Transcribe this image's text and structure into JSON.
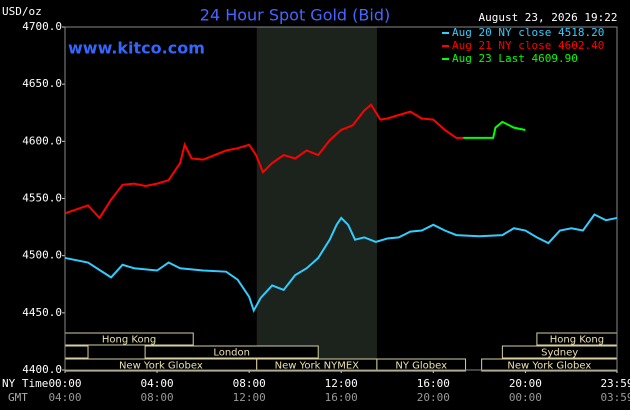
{
  "chart_data": {
    "type": "line",
    "title": "24 Hour Spot Gold (Bid)",
    "watermark": "www.kitco.com",
    "timestamp": "August 23, 2026 19:22",
    "y_label": "USD/oz",
    "x_label": "NY Time",
    "x2_label": "GMT",
    "xlim": [
      0,
      23.98
    ],
    "ylim": [
      4400,
      4700
    ],
    "yticks": [
      {
        "value": 4400,
        "label": "4400.0"
      },
      {
        "value": 4450,
        "label": "4450.0"
      },
      {
        "value": 4500,
        "label": "4500.0"
      },
      {
        "value": 4550,
        "label": "4550.0"
      },
      {
        "value": 4600,
        "label": "4600.0"
      },
      {
        "value": 4650,
        "label": "4650.0"
      },
      {
        "value": 4700,
        "label": "4700.0"
      }
    ],
    "xticks": [
      {
        "value": 0,
        "label": "00:00"
      },
      {
        "value": 4,
        "label": "04:00"
      },
      {
        "value": 8,
        "label": "08:00"
      },
      {
        "value": 12,
        "label": "12:00"
      },
      {
        "value": 16,
        "label": "16:00"
      },
      {
        "value": 20,
        "label": "20:00"
      },
      {
        "value": 23.98,
        "label": "23:59"
      }
    ],
    "x2ticks": [
      {
        "value": 0,
        "label": "04:00"
      },
      {
        "value": 4,
        "label": "08:00"
      },
      {
        "value": 8,
        "label": "12:00"
      },
      {
        "value": 12,
        "label": "16:00"
      },
      {
        "value": 16,
        "label": "20:00"
      },
      {
        "value": 20,
        "label": "00:00"
      },
      {
        "value": 23.98,
        "label": "03:59"
      }
    ],
    "grid": false,
    "shaded_range": [
      8.33,
      13.55
    ],
    "shade_color": "#1c231c",
    "sessions": [
      {
        "label": "Hong Kong",
        "start": 0,
        "end": 5.57,
        "row": 0
      },
      {
        "label": "Hong Kong",
        "start": 20.5,
        "end": 23.98,
        "row": 0
      },
      {
        "start": 0,
        "end": 1,
        "row": 1
      },
      {
        "label": "London",
        "start": 3.48,
        "end": 11,
        "row": 1
      },
      {
        "label": "Sydney",
        "start": 19,
        "end": 23.98,
        "row": 1
      },
      {
        "label": "New York Globex",
        "start": 0,
        "end": 8.33,
        "row": 2
      },
      {
        "label": "New York NYMEX",
        "start": 8.33,
        "end": 13.55,
        "row": 2
      },
      {
        "label": "NY Globex",
        "start": 13.55,
        "end": 17.4,
        "row": 2
      },
      {
        "label": "New York Globex",
        "start": 18.1,
        "end": 23.98,
        "row": 2
      }
    ],
    "series": [
      {
        "name": "Aug 20 NY close 4518.20",
        "color": "#33ccff",
        "x": [
          0,
          1,
          2,
          2.5,
          3,
          4,
          4.5,
          5,
          6,
          7,
          7.5,
          8,
          8.2,
          8.5,
          9,
          9.5,
          10,
          10.5,
          11,
          11.5,
          11.8,
          12,
          12.3,
          12.6,
          13,
          13.5,
          14,
          14.5,
          15,
          15.5,
          16,
          16.5,
          17,
          18,
          19,
          19.5,
          20,
          20.5,
          21,
          21.5,
          22,
          22.5,
          23,
          23.5,
          23.98
        ],
        "values": [
          4498,
          4494,
          4481,
          4492,
          4489,
          4487,
          4494,
          4489,
          4487,
          4486,
          4479,
          4464,
          4452,
          4463,
          4474,
          4470,
          4483,
          4489,
          4498,
          4514,
          4527,
          4533,
          4527,
          4514,
          4516,
          4512,
          4515,
          4516,
          4521,
          4522,
          4527,
          4522,
          4518,
          4517,
          4518,
          4524,
          4522,
          4516,
          4511,
          4522,
          4524,
          4522,
          4536,
          4531,
          4533
        ]
      },
      {
        "name": "Aug 21 NY close 4602.40",
        "color": "#ff0000",
        "x": [
          0,
          1,
          1.5,
          2,
          2.5,
          3,
          3.5,
          4,
          4.5,
          5,
          5.2,
          5.5,
          6,
          6.5,
          7,
          7.5,
          8,
          8.3,
          8.6,
          9,
          9.5,
          10,
          10.5,
          11,
          11.5,
          12,
          12.5,
          13,
          13.3,
          13.7,
          14,
          15,
          15.5,
          16,
          16.5,
          17,
          17.3
        ],
        "values": [
          4537,
          4544,
          4533,
          4549,
          4562,
          4563,
          4561,
          4563,
          4566,
          4581,
          4597,
          4585,
          4584,
          4588,
          4592,
          4594,
          4597,
          4588,
          4573,
          4581,
          4588,
          4585,
          4592,
          4588,
          4601,
          4610,
          4614,
          4627,
          4632,
          4619,
          4620,
          4626,
          4620,
          4619,
          4610,
          4603,
          4603
        ]
      },
      {
        "name": "Aug 23 Last 4609.90",
        "color": "#00ff00",
        "x": [
          17.3,
          18.6,
          18.7,
          19,
          19.5,
          20
        ],
        "values": [
          4603,
          4603,
          4612,
          4617,
          4612,
          4609.9
        ]
      }
    ]
  }
}
